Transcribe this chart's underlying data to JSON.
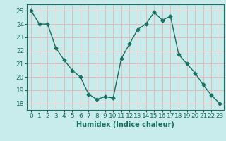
{
  "x": [
    0,
    1,
    2,
    3,
    4,
    5,
    6,
    7,
    8,
    9,
    10,
    11,
    12,
    13,
    14,
    15,
    16,
    17,
    18,
    19,
    20,
    21,
    22,
    23
  ],
  "y": [
    25.0,
    24.0,
    24.0,
    22.2,
    21.3,
    20.5,
    20.0,
    18.7,
    18.3,
    18.5,
    18.4,
    21.4,
    22.5,
    23.6,
    24.0,
    24.9,
    24.3,
    24.6,
    21.7,
    21.0,
    20.3,
    19.4,
    18.6,
    18.0
  ],
  "line_color": "#1a7060",
  "marker": "D",
  "marker_size": 2.5,
  "bg_color": "#c8ecec",
  "grid_color": "#e8b8b8",
  "xlabel": "Humidex (Indice chaleur)",
  "ylim": [
    17.5,
    25.5
  ],
  "xlim": [
    -0.5,
    23.5
  ],
  "yticks": [
    18,
    19,
    20,
    21,
    22,
    23,
    24,
    25
  ],
  "xticks": [
    0,
    1,
    2,
    3,
    4,
    5,
    6,
    7,
    8,
    9,
    10,
    11,
    12,
    13,
    14,
    15,
    16,
    17,
    18,
    19,
    20,
    21,
    22,
    23
  ],
  "xlabel_fontsize": 7,
  "tick_fontsize": 6.5,
  "line_width": 1.0
}
